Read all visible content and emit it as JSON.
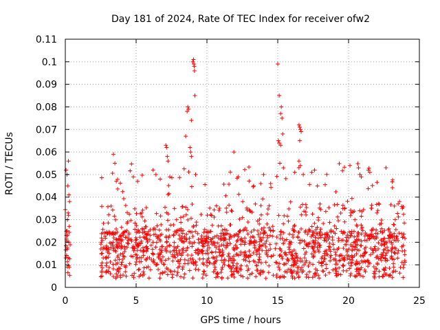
{
  "chart_data": {
    "type": "scatter",
    "title": "Day 181 of 2024, Rate Of TEC Index for receiver ofw2",
    "xlabel": "GPS time / hours",
    "ylabel": "ROTI / TECUs",
    "xlim": [
      0,
      25
    ],
    "ylim": [
      0,
      0.11
    ],
    "xticks": [
      0,
      5,
      10,
      15,
      20,
      25
    ],
    "xtick_labels": [
      "0",
      "5",
      "10",
      "15",
      "20",
      "25"
    ],
    "yticks": [
      0,
      0.01,
      0.02,
      0.03,
      0.04,
      0.05,
      0.06,
      0.07,
      0.08,
      0.09,
      0.1,
      0.11
    ],
    "ytick_labels": [
      "0",
      "0.01",
      "0.02",
      "0.03",
      "0.04",
      "0.05",
      "0.06",
      "0.07",
      "0.08",
      "0.09",
      "0.1",
      "0.11"
    ],
    "grid": true,
    "marker": "+",
    "color": "#ff0000",
    "series": [
      {
        "name": "ofw2",
        "segments": [
          {
            "x_start": 0.0,
            "x_end": 0.35,
            "typical_max": 0.03
          },
          {
            "x_start": 2.5,
            "x_end": 24.0,
            "typical_max": 0.045
          }
        ],
        "points": [
          [
            0.05,
            0.052
          ],
          [
            0.12,
            0.05
          ],
          [
            0.22,
            0.056
          ],
          [
            0.18,
            0.045
          ],
          [
            0.25,
            0.041
          ],
          [
            0.3,
            0.038
          ],
          [
            0.08,
            0.023
          ],
          [
            0.15,
            0.03
          ],
          [
            0.2,
            0.033
          ],
          [
            0.28,
            0.027
          ],
          [
            3.4,
            0.059
          ],
          [
            3.5,
            0.055
          ],
          [
            3.6,
            0.047
          ],
          [
            4.8,
            0.049
          ],
          [
            5.1,
            0.047
          ],
          [
            6.2,
            0.052
          ],
          [
            6.4,
            0.05
          ],
          [
            6.7,
            0.048
          ],
          [
            7.1,
            0.063
          ],
          [
            7.15,
            0.062
          ],
          [
            7.2,
            0.058
          ],
          [
            7.25,
            0.056
          ],
          [
            8.5,
            0.067
          ],
          [
            8.6,
            0.078
          ],
          [
            8.65,
            0.08
          ],
          [
            8.7,
            0.079
          ],
          [
            8.8,
            0.062
          ],
          [
            8.85,
            0.06
          ],
          [
            8.9,
            0.074
          ],
          [
            9.0,
            0.1
          ],
          [
            9.05,
            0.101
          ],
          [
            9.08,
            0.099
          ],
          [
            9.1,
            0.098
          ],
          [
            9.12,
            0.096
          ],
          [
            9.15,
            0.085
          ],
          [
            8.9,
            0.058
          ],
          [
            9.2,
            0.05
          ],
          [
            11.9,
            0.06
          ],
          [
            12.2,
            0.049
          ],
          [
            13.3,
            0.045
          ],
          [
            13.8,
            0.046
          ],
          [
            14.0,
            0.05
          ],
          [
            14.5,
            0.046
          ],
          [
            15.0,
            0.099
          ],
          [
            15.1,
            0.085
          ],
          [
            15.2,
            0.077
          ],
          [
            15.25,
            0.08
          ],
          [
            15.3,
            0.075
          ],
          [
            15.35,
            0.068
          ],
          [
            15.05,
            0.065
          ],
          [
            15.1,
            0.064
          ],
          [
            15.2,
            0.063
          ],
          [
            15.15,
            0.055
          ],
          [
            15.4,
            0.053
          ],
          [
            16.2,
            0.051
          ],
          [
            16.5,
            0.072
          ],
          [
            16.55,
            0.071
          ],
          [
            16.6,
            0.07
          ],
          [
            16.65,
            0.069
          ],
          [
            16.55,
            0.065
          ],
          [
            16.5,
            0.056
          ],
          [
            16.6,
            0.054
          ],
          [
            16.8,
            0.05
          ],
          [
            17.4,
            0.051
          ],
          [
            17.6,
            0.052
          ],
          [
            17.8,
            0.045
          ],
          [
            20.1,
            0.054
          ],
          [
            20.7,
            0.053
          ],
          [
            20.8,
            0.05
          ],
          [
            20.9,
            0.049
          ],
          [
            21.4,
            0.052
          ],
          [
            21.5,
            0.051
          ],
          [
            22.0,
            0.033
          ],
          [
            22.2,
            0.028
          ],
          [
            23.3,
            0.03
          ],
          [
            23.5,
            0.037
          ],
          [
            23.6,
            0.038
          ],
          [
            23.8,
            0.035
          ]
        ]
      }
    ]
  }
}
